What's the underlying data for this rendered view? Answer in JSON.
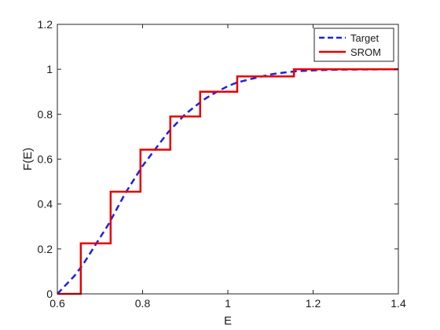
{
  "chart_data": {
    "type": "line",
    "title": "",
    "xlabel": "E",
    "ylabel": "F(E)",
    "xlim": [
      0.6,
      1.4
    ],
    "ylim": [
      0,
      1.2
    ],
    "xticks": [
      0.6,
      0.8,
      1,
      1.2,
      1.4
    ],
    "xtick_labels": [
      "0.6",
      "0.8",
      "1",
      "1.2",
      "1.4"
    ],
    "yticks": [
      0,
      0.2,
      0.4,
      0.6,
      0.8,
      1,
      1.2
    ],
    "ytick_labels": [
      "0",
      "0.2",
      "0.4",
      "0.6",
      "0.8",
      "1",
      "1.2"
    ],
    "grid": false,
    "legend_position": "top-right",
    "series": [
      {
        "name": "Target",
        "style": "dashed",
        "color": "#1f1fe6",
        "x": [
          0.6,
          0.62,
          0.64,
          0.66,
          0.68,
          0.7,
          0.72,
          0.74,
          0.76,
          0.78,
          0.8,
          0.82,
          0.84,
          0.86,
          0.88,
          0.9,
          0.92,
          0.94,
          0.96,
          0.98,
          1.0,
          1.02,
          1.05,
          1.08,
          1.1,
          1.13,
          1.16,
          1.2,
          1.25,
          1.3,
          1.4
        ],
        "y": [
          0,
          0.04,
          0.08,
          0.13,
          0.19,
          0.25,
          0.31,
          0.38,
          0.45,
          0.51,
          0.57,
          0.62,
          0.67,
          0.72,
          0.76,
          0.8,
          0.83,
          0.86,
          0.885,
          0.905,
          0.925,
          0.94,
          0.955,
          0.968,
          0.977,
          0.985,
          0.991,
          0.995,
          0.998,
          0.999,
          1.0
        ]
      },
      {
        "name": "SROM",
        "style": "solid",
        "color": "#e60000",
        "x": [
          0.6,
          0.655,
          0.655,
          0.725,
          0.725,
          0.795,
          0.795,
          0.865,
          0.865,
          0.935,
          0.935,
          1.022,
          1.022,
          1.155,
          1.155,
          1.4
        ],
        "y": [
          0,
          0,
          0.225,
          0.225,
          0.455,
          0.455,
          0.642,
          0.642,
          0.79,
          0.79,
          0.9,
          0.9,
          0.968,
          0.968,
          1.0,
          1.0
        ]
      }
    ]
  }
}
